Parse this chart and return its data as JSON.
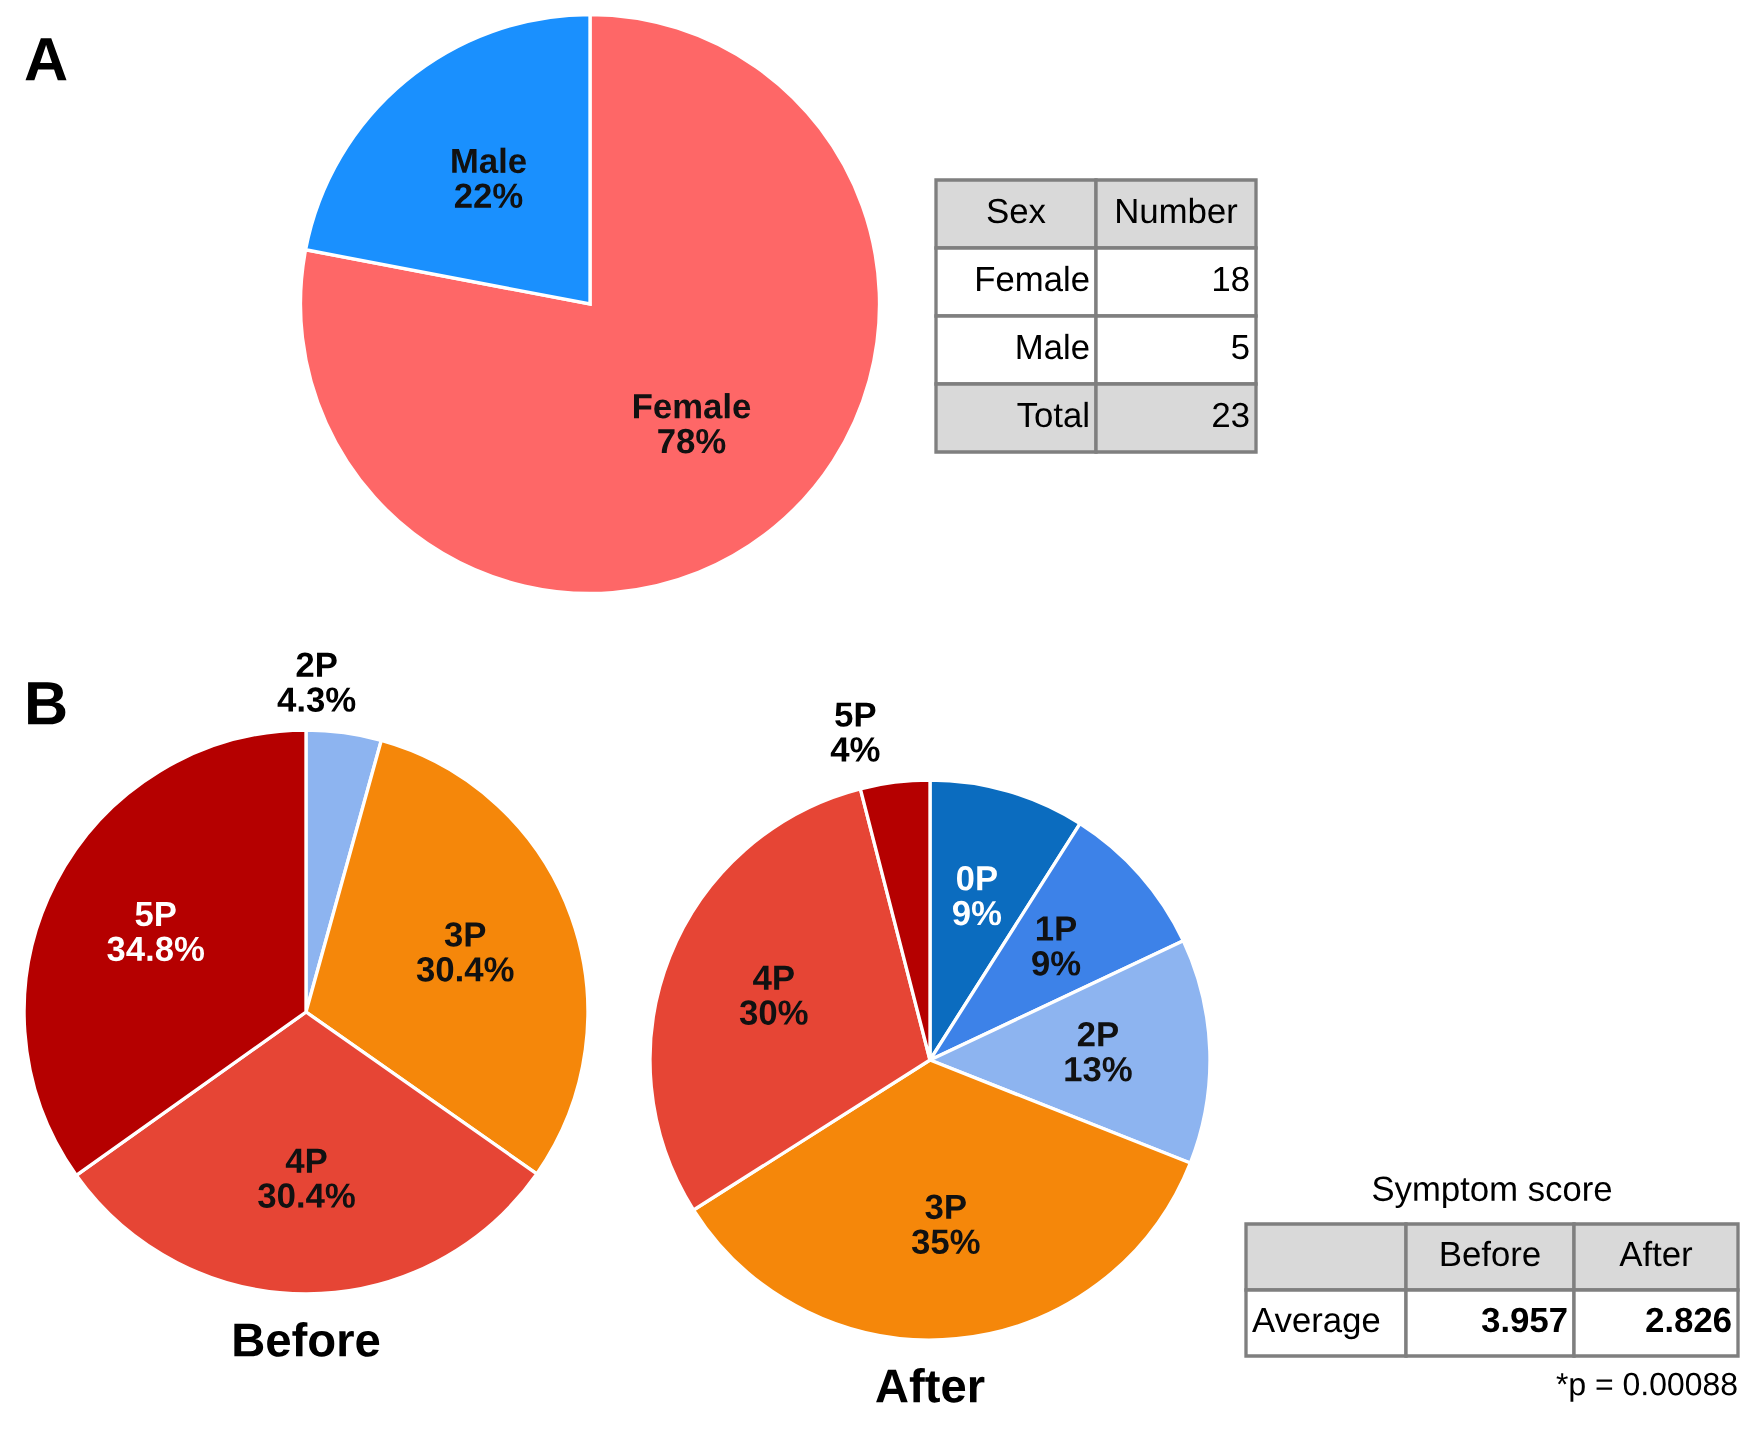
{
  "chart_data": [
    {
      "type": "pie",
      "title": "A",
      "categories": [
        "Female",
        "Male"
      ],
      "values": [
        78,
        22
      ],
      "value_labels": [
        "78%",
        "22%"
      ],
      "colors": [
        "#fe6767",
        "#1a90fe"
      ]
    },
    {
      "type": "other",
      "ylabel": "Sex",
      "categories": [
        "Number"
      ],
      "y_categories": [
        "Female",
        "Male",
        "Total"
      ],
      "cell_labels": [
        [
          "18"
        ],
        [
          "5"
        ],
        [
          "23"
        ]
      ]
    },
    {
      "type": "pie",
      "title": "B",
      "xlabel": "Before",
      "categories": [
        "2P",
        "3P",
        "4P",
        "5P"
      ],
      "values": [
        4.3,
        30.4,
        30.4,
        34.8
      ],
      "value_labels": [
        "4.3%",
        "30.4%",
        "30.4%",
        "34.8%"
      ],
      "colors": [
        "#8db4f0",
        "#f5870a",
        "#e64535",
        "#b50000"
      ]
    },
    {
      "type": "pie",
      "xlabel": "After",
      "categories": [
        "0P",
        "1P",
        "2P",
        "3P",
        "4P",
        "5P"
      ],
      "values": [
        9,
        9,
        13,
        35,
        30,
        4
      ],
      "value_labels": [
        "9%",
        "9%",
        "13%",
        "35%",
        "30%",
        "4%"
      ],
      "colors": [
        "#0b6cbf",
        "#3d82e8",
        "#8db4f0",
        "#f5870a",
        "#e64535",
        "#b50000"
      ]
    },
    {
      "type": "other",
      "title": "Symptom score",
      "categories": [
        "Before",
        "After"
      ],
      "y_categories": [
        "Average"
      ],
      "cell_labels": [
        [
          "3.957",
          "2.826"
        ]
      ],
      "annotations": [
        "*p = 0.00088"
      ]
    }
  ]
}
